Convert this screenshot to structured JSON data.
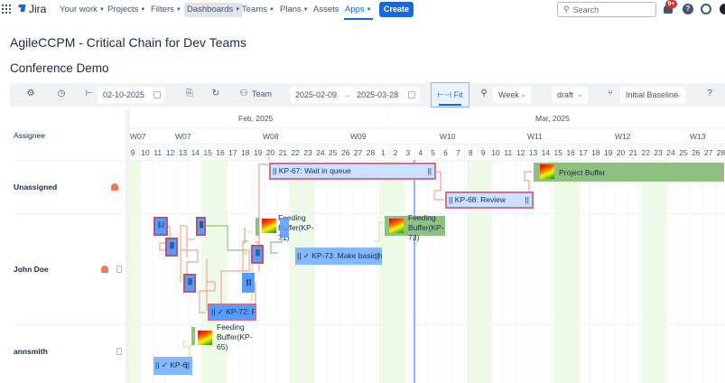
{
  "topnav": {
    "app_name": "Jira",
    "items": [
      {
        "label": "Your work",
        "has_chevron": true
      },
      {
        "label": "Projects",
        "has_chevron": true
      },
      {
        "label": "Filters",
        "has_chevron": true
      },
      {
        "label": "Dashboards",
        "has_chevron": true,
        "active": true
      },
      {
        "label": "Teams",
        "has_chevron": true
      },
      {
        "label": "Plans",
        "has_chevron": true
      },
      {
        "label": "Assets",
        "has_chevron": false
      },
      {
        "label": "Apps",
        "has_chevron": true,
        "selected": true
      }
    ],
    "create_label": "Create",
    "search_placeholder": "Search",
    "notification_badge": "9+",
    "help_icon": "?"
  },
  "page": {
    "title": "AgileCCPM - Critical Chain for Dev Teams",
    "subtitle": "Conference Demo"
  },
  "toolbar": {
    "start_date": "02-10-2025",
    "team_label": "Team",
    "range_from": "2025-02-09",
    "range_arrow": "→",
    "range_to": "2025-03-28",
    "fit_label": "Fit",
    "zoom_level": "Week",
    "status": "draft",
    "baseline": "Initial Baseline"
  },
  "gantt": {
    "assignee_header": "Assignee",
    "assignees": [
      {
        "name": "Unassigned",
        "alarm": true,
        "trash": false
      },
      {
        "name": "John Doe",
        "alarm": true,
        "trash": true
      },
      {
        "name": "annsmith",
        "alarm": false,
        "trash": true
      }
    ],
    "months": [
      {
        "label": "Feb, 2025"
      },
      {
        "label": "Mar, 2025"
      }
    ],
    "weeks": [
      "W07",
      "W07",
      "W08",
      "W09",
      "W10",
      "W11",
      "W12",
      "W13"
    ],
    "days": [
      "9",
      "10",
      "11",
      "12",
      "13",
      "14",
      "15",
      "16",
      "17",
      "18",
      "19",
      "20",
      "21",
      "22",
      "23",
      "24",
      "25",
      "26",
      "27",
      "28",
      "1",
      "2",
      "3",
      "4",
      "5",
      "6",
      "7",
      "8",
      "9",
      "10",
      "11",
      "12",
      "13",
      "14",
      "15",
      "16",
      "17",
      "18",
      "19",
      "20",
      "21",
      "22",
      "23",
      "24",
      "25",
      "26",
      "27",
      "28"
    ],
    "tasks": {
      "kp67": {
        "label": "|| KP-67: Wait in queue",
        "end": "||"
      },
      "kp68": {
        "label": "|| KP-68: Review",
        "end": "||"
      },
      "kp73": {
        "label": "|| ✓ KP-73: Make basic h",
        "end": "||"
      },
      "kp72": {
        "label": "|| ✓ KP-72: Fi",
        "end": "||"
      },
      "kp6": {
        "label": "|| ✓ KP-6",
        "end": "||"
      },
      "s1": "||↓|",
      "s2": "||||",
      "s3": "||||",
      "s4": "||||",
      "s5": "||||",
      "s6": "|| ||"
    },
    "buffers": {
      "project": "Project Buffer",
      "kp71": "Feeding Buffer(KP-71)",
      "kp71_lines": [
        "Feeding",
        "Buffer(KP-",
        "71)"
      ],
      "kp73_lines": [
        "Feeding",
        "Buffer(KP-",
        "73)"
      ],
      "kp65_lines": [
        "Feeding",
        "Buffer(KP-",
        "65)"
      ]
    }
  },
  "colors": {
    "brand": "#1868db",
    "weekend": "#edfbe6",
    "task_fill": "#cce0ff",
    "task_critical_border": "#d0728c",
    "task_done_fill": "#579dff",
    "buffer_green": "#8fc082",
    "today_line": "#579dff"
  }
}
